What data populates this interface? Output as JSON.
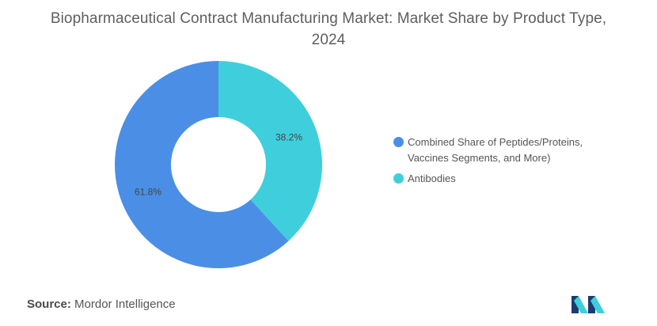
{
  "chart_data": {
    "type": "pie",
    "donut": true,
    "title": "Biopharmaceutical Contract Manufacturing Market: Market Share by Product Type, 2024",
    "slices": [
      {
        "label": "Antibodies",
        "value": 38.2,
        "value_label": "38.2%",
        "color": "#3fcfdc"
      },
      {
        "label": "Combined Share of Peptides/Proteins, Vaccines Segments, and More)",
        "value": 61.8,
        "value_label": "61.8%",
        "color": "#4a8fe5"
      }
    ],
    "legend": {
      "placement": "right",
      "order": [
        "Combined Share of Peptides/Proteins, Vaccines Segments, and More)",
        "Antibodies"
      ]
    }
  },
  "footer": {
    "source_label": "Source:",
    "source_name": "Mordor Intelligence"
  },
  "logo": {
    "icon": "mordor-intelligence-logo-icon",
    "colors": [
      "#1d3a6e",
      "#3fcfdc"
    ]
  }
}
